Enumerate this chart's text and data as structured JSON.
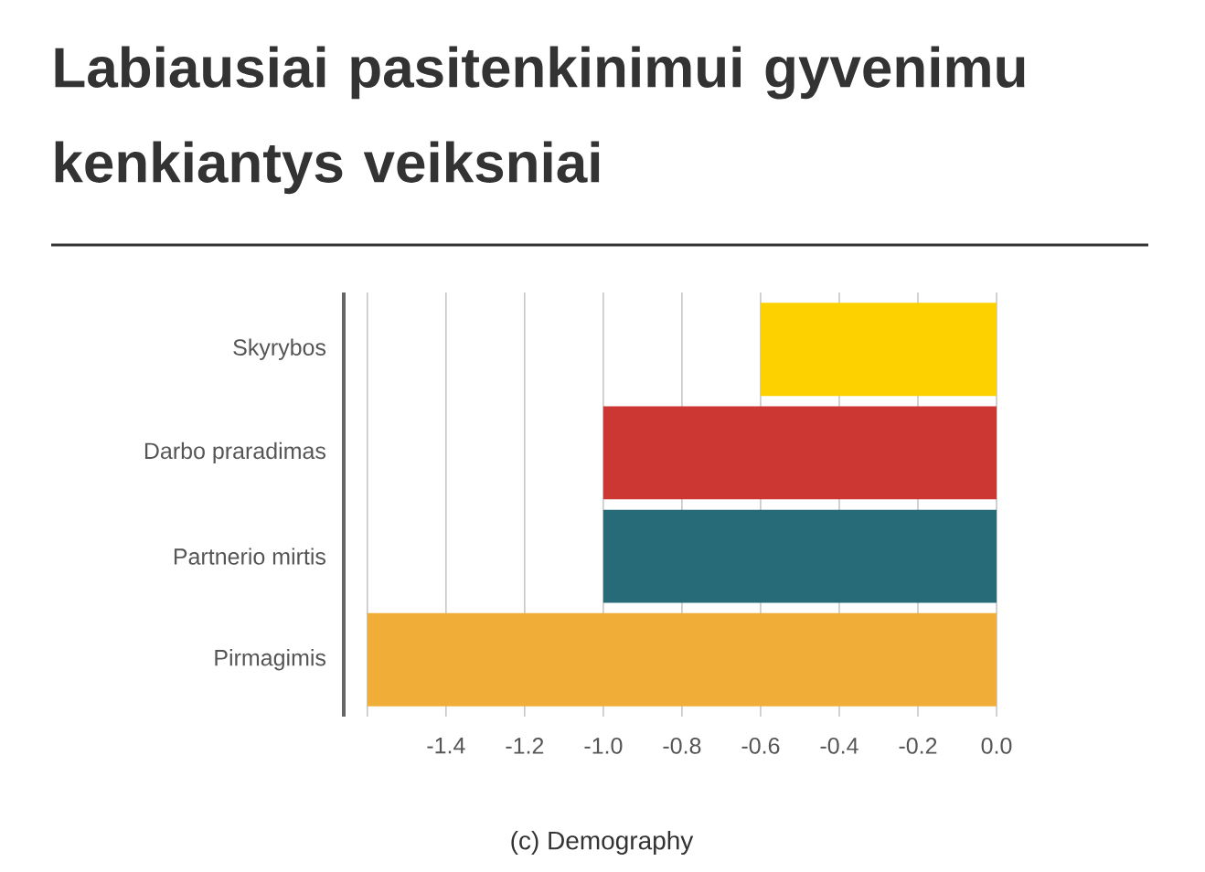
{
  "chart_data": {
    "type": "bar",
    "orientation": "horizontal",
    "title": "Labiausiai pasitenkinimui gyvenimu kenkiantys veiksniai",
    "categories": [
      "Skyrybos",
      "Darbo praradimas",
      "Partnerio mirtis",
      "Pirmagimis"
    ],
    "values": [
      -0.6,
      -1.0,
      -1.0,
      -1.6
    ],
    "colors": [
      "#fdd000",
      "#cc3633",
      "#276a78",
      "#f0ae38"
    ],
    "xlim": [
      -1.66,
      0
    ],
    "xticks": [
      {
        "value": -1.6,
        "label": null
      },
      -1.4,
      -1.2,
      {
        "value": -1.0,
        "label": "-1.0"
      },
      -0.8,
      -0.6,
      -0.4,
      -0.2,
      {
        "value": 0,
        "label": "0.0"
      }
    ],
    "grid": "x",
    "annotations": [
      "(c) Demography"
    ]
  }
}
